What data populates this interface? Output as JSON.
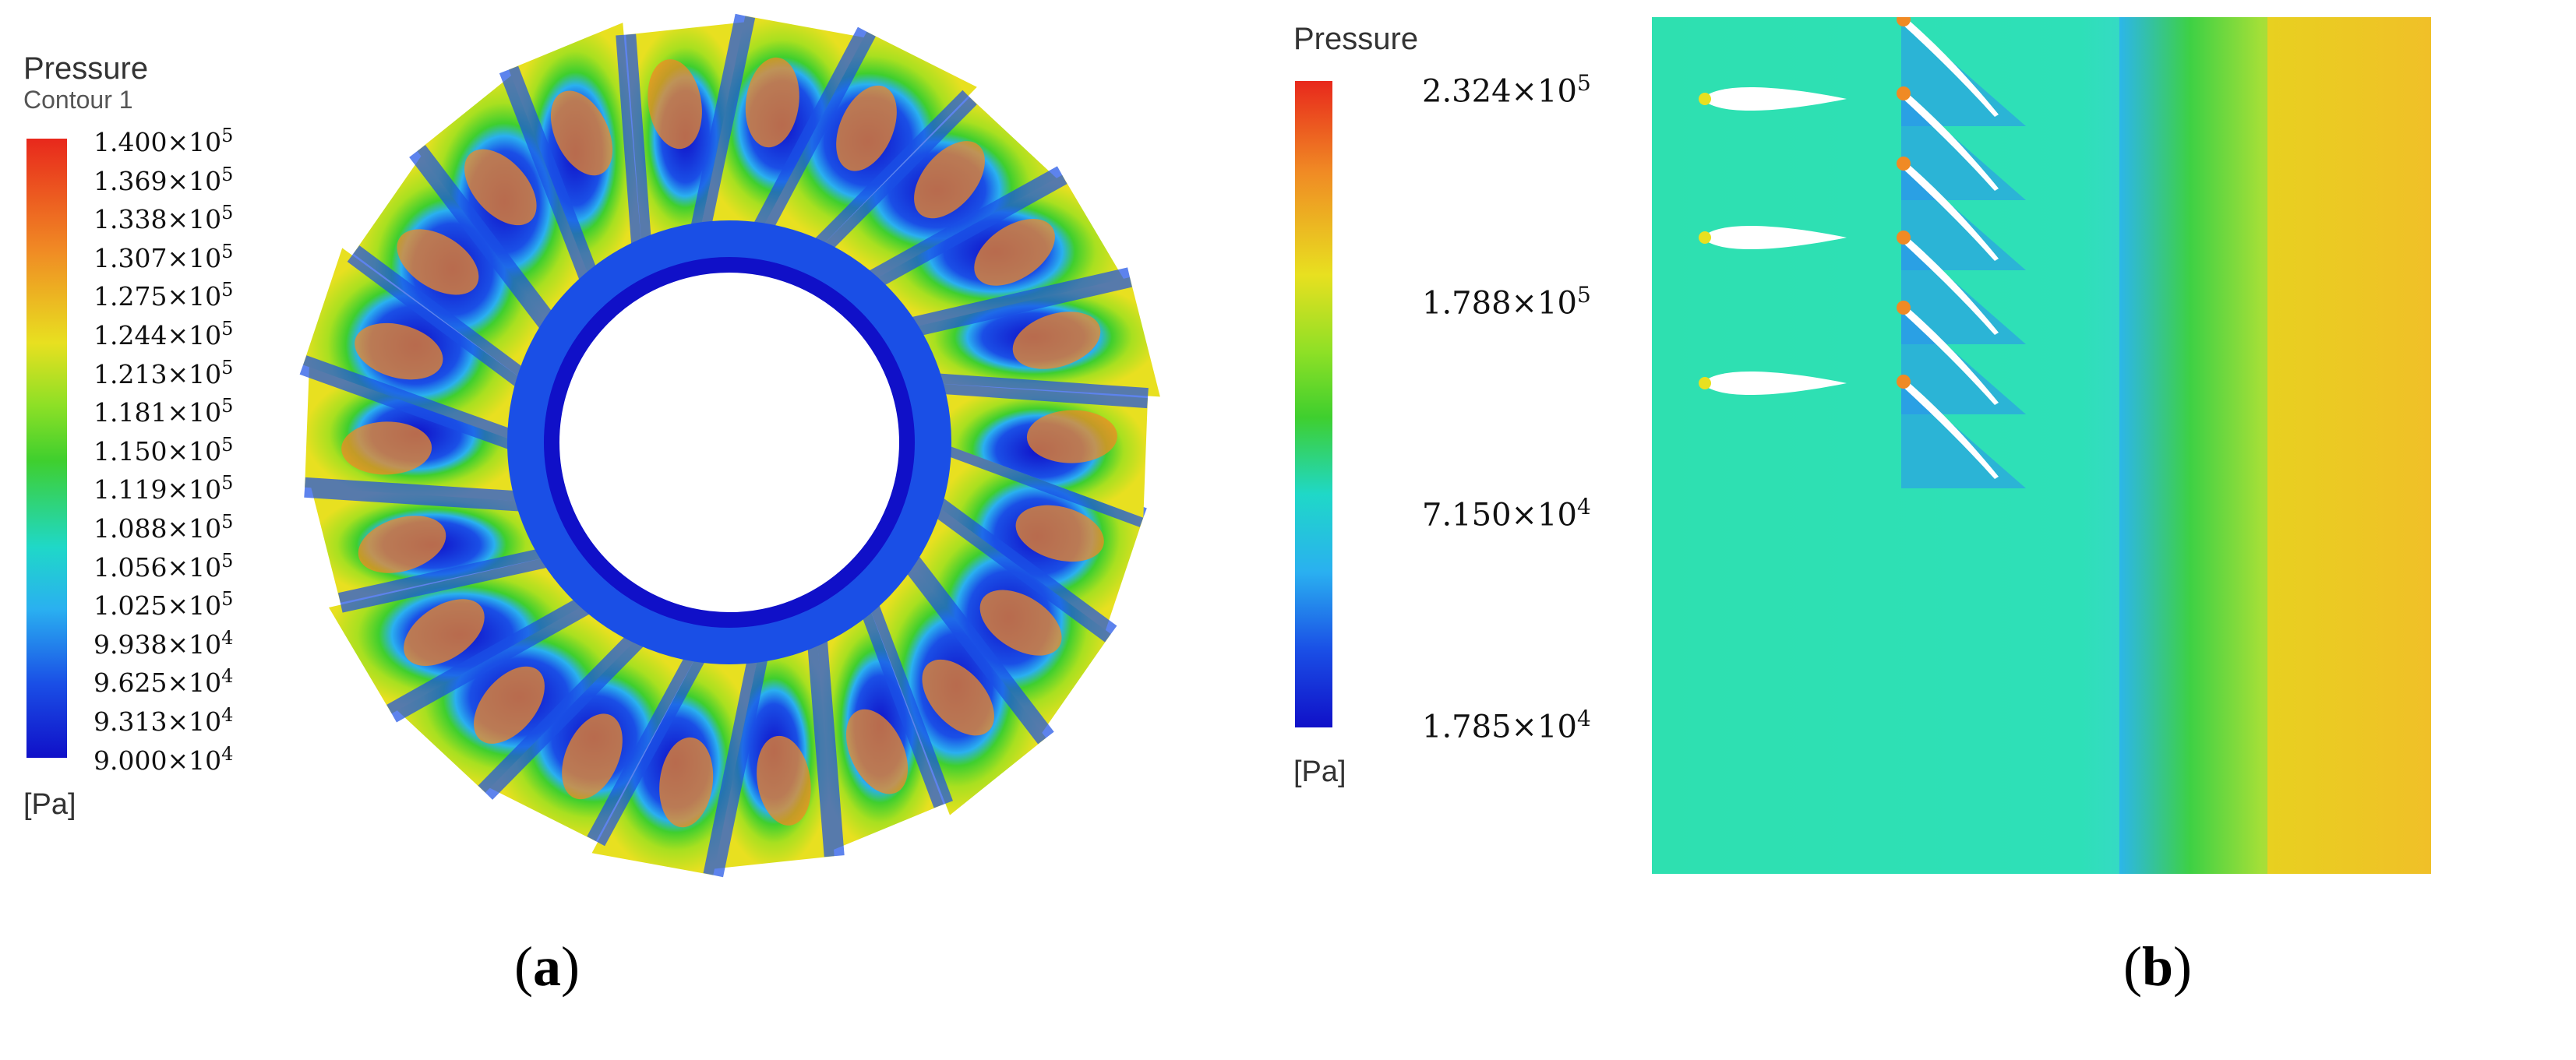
{
  "panel_a": {
    "label_open": "(",
    "label_letter": "a",
    "label_close": ")",
    "legend": {
      "title": "Pressure",
      "subtitle": "Contour 1",
      "unit": "[Pa]",
      "ticks": [
        {
          "mantissa": "1.400×10",
          "exp": "5"
        },
        {
          "mantissa": "1.369×10",
          "exp": "5"
        },
        {
          "mantissa": "1.338×10",
          "exp": "5"
        },
        {
          "mantissa": "1.307×10",
          "exp": "5"
        },
        {
          "mantissa": "1.275×10",
          "exp": "5"
        },
        {
          "mantissa": "1.244×10",
          "exp": "5"
        },
        {
          "mantissa": "1.213×10",
          "exp": "5"
        },
        {
          "mantissa": "1.181×10",
          "exp": "5"
        },
        {
          "mantissa": "1.150×10",
          "exp": "5"
        },
        {
          "mantissa": "1.119×10",
          "exp": "5"
        },
        {
          "mantissa": "1.088×10",
          "exp": "5"
        },
        {
          "mantissa": "1.056×10",
          "exp": "5"
        },
        {
          "mantissa": "1.025×10",
          "exp": "5"
        },
        {
          "mantissa": "9.938×10",
          "exp": "4"
        },
        {
          "mantissa": "9.625×10",
          "exp": "4"
        },
        {
          "mantissa": "9.313×10",
          "exp": "4"
        },
        {
          "mantissa": "9.000×10",
          "exp": "4"
        }
      ]
    }
  },
  "panel_b": {
    "label_open": "(",
    "label_letter": "b",
    "label_close": ")",
    "legend": {
      "title": "Pressure",
      "unit": "[Pa]",
      "ticks": [
        {
          "mantissa": "2.324×10",
          "exp": "5"
        },
        {
          "mantissa": "1.788×10",
          "exp": "5"
        },
        {
          "mantissa": "7.150×10",
          "exp": "4"
        },
        {
          "mantissa": "1.785×10",
          "exp": "4"
        }
      ]
    }
  },
  "colors": {
    "red": "#e8281c",
    "orange": "#f08a24",
    "yellow": "#e8e020",
    "green": "#3fcf2e",
    "cyan": "#1fd8c8",
    "lightblue": "#2ab0f0",
    "blue": "#1a4fe6",
    "darkblue": "#1010c8",
    "field_b": "#2ee0b0"
  }
}
